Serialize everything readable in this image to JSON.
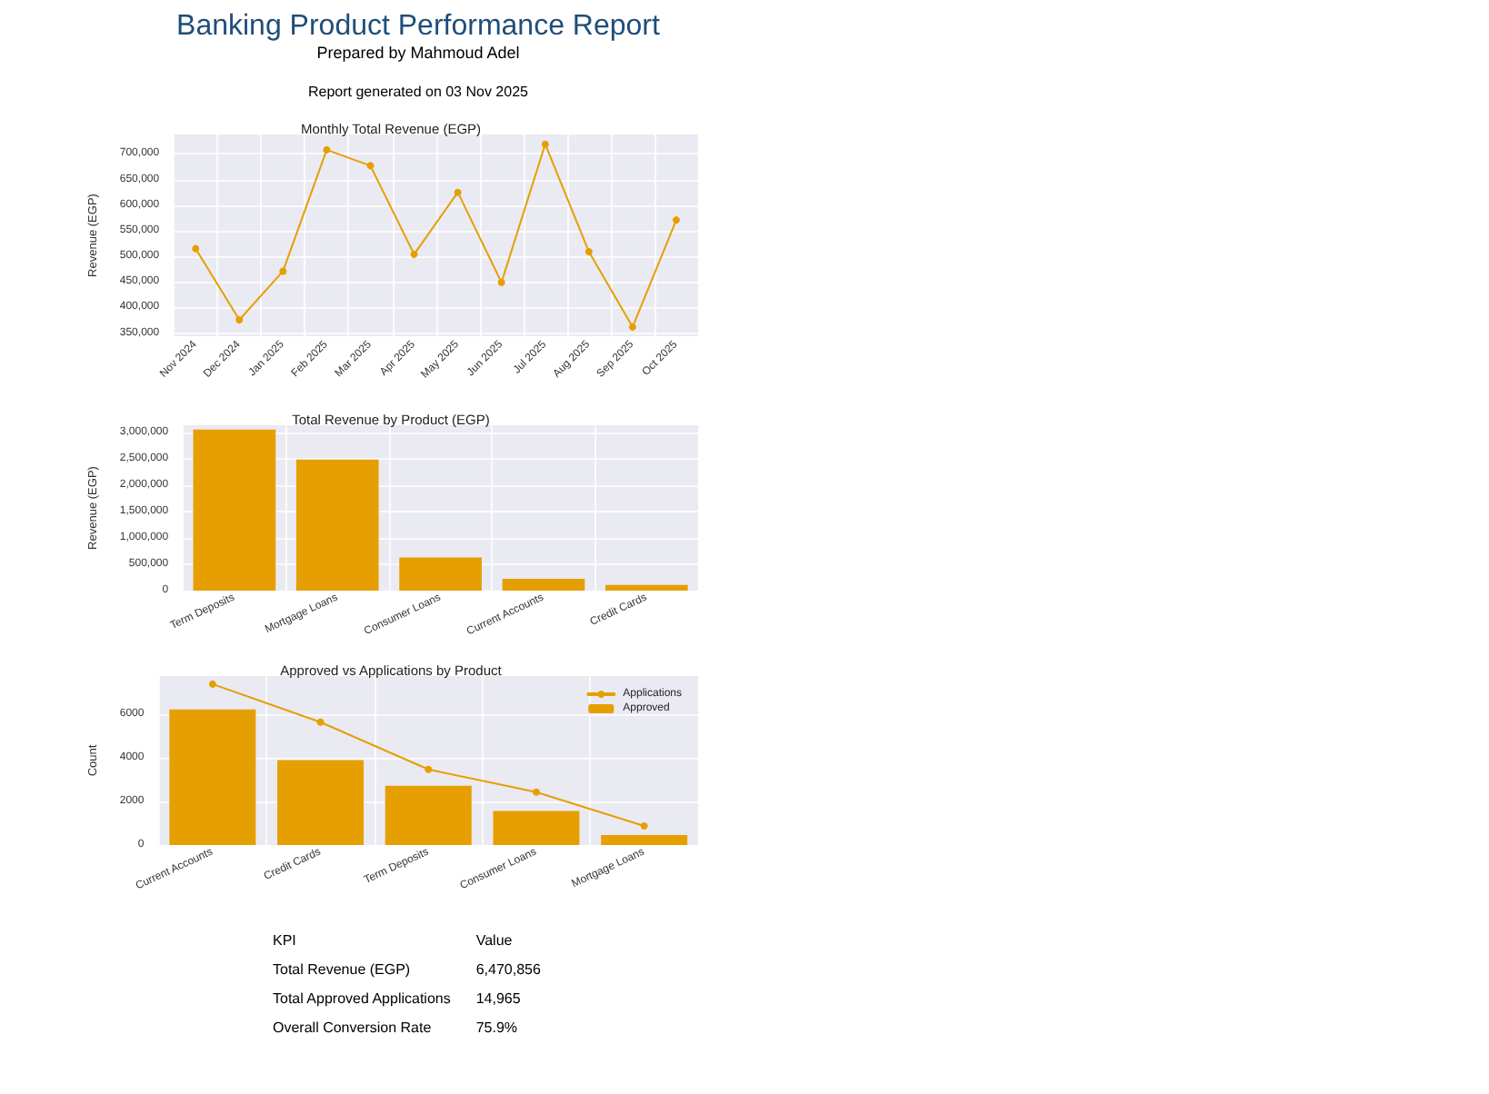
{
  "chart_data": [
    {
      "type": "other",
      "title": "Banking Product Performance Report",
      "subtitle": "Prepared by Mahmoud Adel",
      "annotations": [
        "Report generated on 03 Nov 2025"
      ]
    },
    {
      "type": "line",
      "title": "Monthly Total Revenue (EGP)",
      "ylabel": "Revenue (EGP)",
      "categories": [
        "Nov 2024",
        "Dec 2024",
        "Jan 2025",
        "Feb 2025",
        "Mar 2025",
        "Apr 2025",
        "May 2025",
        "Jun 2025",
        "Jul 2025",
        "Aug 2025",
        "Sep 2025",
        "Oct 2025"
      ],
      "series": [
        {
          "color": "#e69f00",
          "values": [
            515000,
            376000,
            471000,
            708000,
            677000,
            504000,
            625000,
            449000,
            719000,
            509000,
            362000,
            571000
          ]
        }
      ],
      "ylim": [
        344000,
        738000
      ],
      "yticks": [
        {
          "value": 350000,
          "label": "350,000"
        },
        {
          "value": 400000,
          "label": "400,000"
        },
        {
          "value": 450000,
          "label": "450,000"
        },
        {
          "value": 500000,
          "label": "500,000"
        },
        {
          "value": 550000,
          "label": "550,000"
        },
        {
          "value": 600000,
          "label": "600,000"
        },
        {
          "value": 650000,
          "label": "650,000"
        },
        {
          "value": 700000,
          "label": "700,000"
        }
      ],
      "grid": true,
      "marker": "circle",
      "line_style": "solid",
      "legend": false
    },
    {
      "type": "bar",
      "title": "Total Revenue by Product (EGP)",
      "ylabel": "Revenue (EGP)",
      "categories": [
        "Term Deposits",
        "Mortgage Loans",
        "Consumer Loans",
        "Current Accounts",
        "Credit Cards"
      ],
      "series": [
        {
          "color": "#e69f00",
          "values": [
            3060000,
            2490000,
            630000,
            226000,
            107000
          ]
        }
      ],
      "ylim": [
        0,
        3140000
      ],
      "yticks": [
        {
          "value": 0,
          "label": "0"
        },
        {
          "value": 500000,
          "label": "500,000"
        },
        {
          "value": 1000000,
          "label": "1,000,000"
        },
        {
          "value": 1500000,
          "label": "1,500,000"
        },
        {
          "value": 2000000,
          "label": "2,000,000"
        },
        {
          "value": 2500000,
          "label": "2,500,000"
        },
        {
          "value": 3000000,
          "label": "3,000,000"
        }
      ],
      "grid": true,
      "legend": false
    },
    {
      "type": "bar",
      "title": "Approved vs Applications by Product",
      "ylabel": "Count",
      "categories": [
        "Current Accounts",
        "Credit Cards",
        "Term Deposits",
        "Consumer Loans",
        "Mortgage Loans"
      ],
      "series": [
        {
          "name": "Applications",
          "type": "line",
          "color": "#e69f00",
          "marker": "circle",
          "values": [
            7360,
            5620,
            3460,
            2420,
            870
          ]
        },
        {
          "name": "Approved",
          "type": "bar",
          "color": "#e69f00",
          "values": [
            6200,
            3890,
            2710,
            1560,
            460
          ]
        }
      ],
      "ylim": [
        0,
        7730
      ],
      "yticks": [
        0,
        2000,
        4000,
        6000
      ],
      "grid": true,
      "legend": "top right"
    },
    {
      "type": "other",
      "annotations": [
        "KPI",
        "Value",
        "Total Revenue (EGP)",
        "6,470,856",
        "Total Approved Applications",
        "14,965",
        "Overall Conversion Rate",
        "75.9%"
      ]
    }
  ]
}
